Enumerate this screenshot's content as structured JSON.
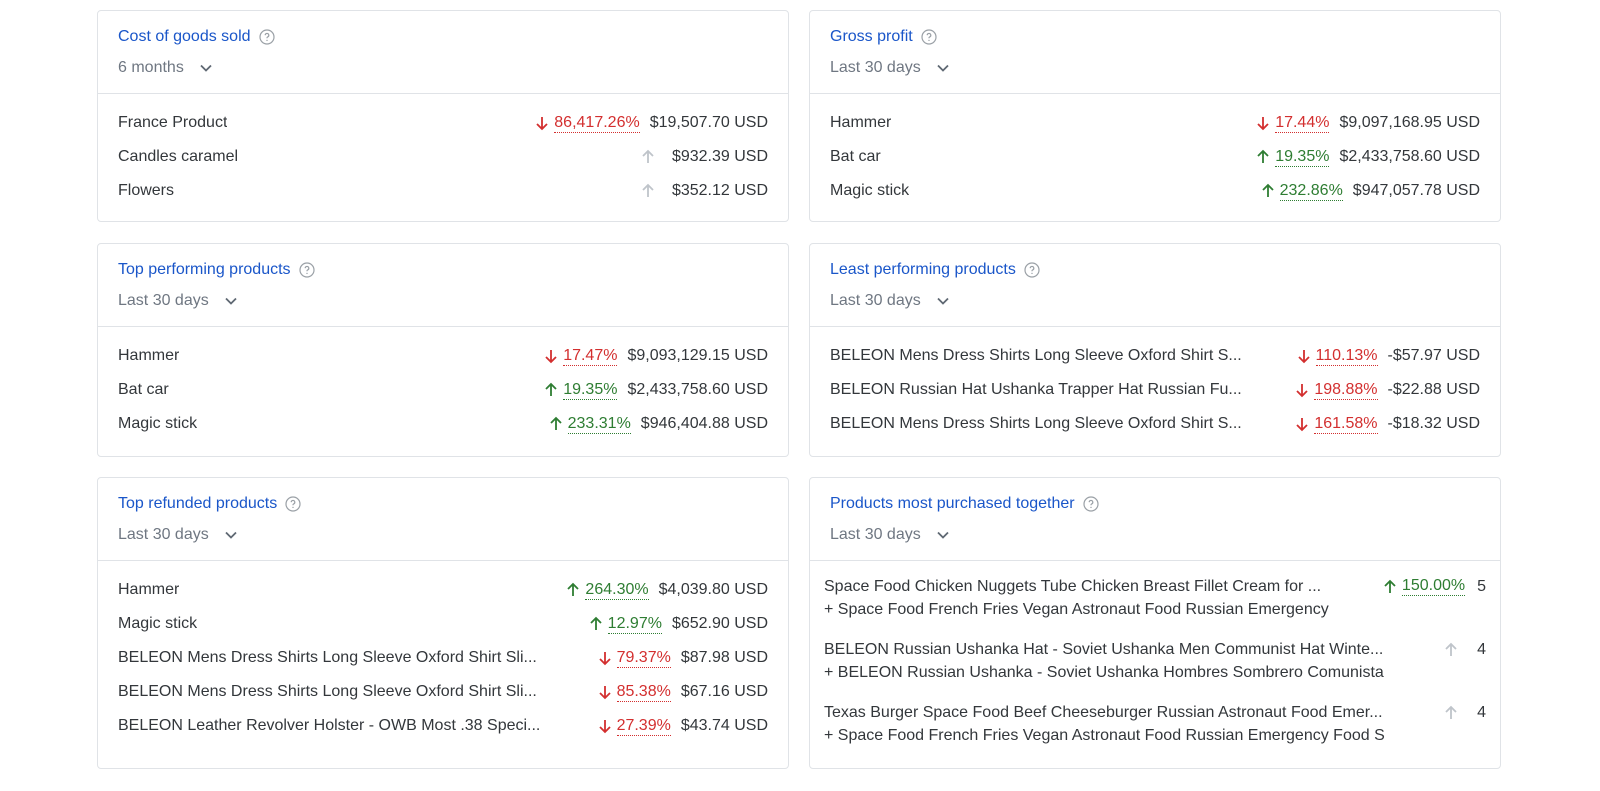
{
  "cards": {
    "cogs": {
      "title": "Cost of goods sold",
      "period": "6 months",
      "rows": [
        {
          "name": "France Product",
          "change": "86,417.26%",
          "value": "$19,507.70 USD"
        },
        {
          "name": "Candles caramel",
          "change": "",
          "value": "$932.39 USD"
        },
        {
          "name": "Flowers",
          "change": "",
          "value": "$352.12 USD"
        }
      ]
    },
    "gross_profit": {
      "title": "Gross profit",
      "period": "Last 30 days",
      "rows": [
        {
          "name": "Hammer",
          "change": "17.44%",
          "value": "$9,097,168.95 USD"
        },
        {
          "name": "Bat car",
          "change": "19.35%",
          "value": "$2,433,758.60 USD"
        },
        {
          "name": "Magic stick",
          "change": "232.86%",
          "value": "$947,057.78 USD"
        }
      ]
    },
    "top_performing": {
      "title": "Top performing products",
      "period": "Last 30 days",
      "rows": [
        {
          "name": "Hammer",
          "change": "17.47%",
          "value": "$9,093,129.15 USD"
        },
        {
          "name": "Bat car",
          "change": "19.35%",
          "value": "$2,433,758.60 USD"
        },
        {
          "name": "Magic stick",
          "change": "233.31%",
          "value": "$946,404.88 USD"
        }
      ]
    },
    "least_performing": {
      "title": "Least performing products",
      "period": "Last 30 days",
      "rows": [
        {
          "name": "BELEON Mens Dress Shirts Long Sleeve Oxford Shirt S...",
          "change": "110.13%",
          "value": "-$57.97 USD"
        },
        {
          "name": "BELEON Russian Hat Ushanka Trapper Hat Russian Fu...",
          "change": "198.88%",
          "value": "-$22.88 USD"
        },
        {
          "name": "BELEON Mens Dress Shirts Long Sleeve Oxford Shirt S...",
          "change": "161.58%",
          "value": "-$18.32 USD"
        }
      ]
    },
    "top_refunded": {
      "title": "Top refunded products",
      "period": "Last 30 days",
      "rows": [
        {
          "name": "Hammer",
          "change": "264.30%",
          "value": "$4,039.80 USD"
        },
        {
          "name": "Magic stick",
          "change": "12.97%",
          "value": "$652.90 USD"
        },
        {
          "name": "BELEON Mens Dress Shirts Long Sleeve Oxford Shirt Sli...",
          "change": "79.37%",
          "value": "$87.98 USD"
        },
        {
          "name": "BELEON Mens Dress Shirts Long Sleeve Oxford Shirt Sli...",
          "change": "85.38%",
          "value": "$67.16 USD"
        },
        {
          "name": "BELEON Leather Revolver Holster - OWB Most .38 Speci...",
          "change": "27.39%",
          "value": "$43.74 USD"
        }
      ]
    },
    "purchased_together": {
      "title": "Products most purchased together",
      "period": "Last 30 days",
      "rows": [
        {
          "line1": "Space Food Chicken Nuggets Tube Chicken Breast Fillet Cream for ...",
          "line2": "+ Space Food French Fries Vegan Astronaut Food Russian Emergency",
          "change": "150.00%",
          "count": "5"
        },
        {
          "line1": "BELEON Russian Ushanka Hat - Soviet Ushanka Men Communist Hat Winte...",
          "line2": "+ BELEON Russian Ushanka - Soviet Ushanka Hombres Sombrero Comunista",
          "change": "",
          "count": "4"
        },
        {
          "line1": "Texas Burger Space Food Beef Cheeseburger Russian Astronaut Food Emer...",
          "line2": "+ Space Food French Fries Vegan Astronaut Food Russian Emergency Food S",
          "change": "",
          "count": "4"
        }
      ]
    }
  },
  "colors": {
    "title": "#1a56c9",
    "down": "#d32f2f",
    "up": "#2e7d32",
    "neutral_arrow": "#bfc4ca",
    "border": "#e0e3e7"
  },
  "icons": {
    "help": "help-circle-icon",
    "chevron": "chevron-down-icon",
    "up": "arrow-up-icon",
    "down": "arrow-down-icon",
    "neutral": "arrow-up-neutral-icon"
  }
}
